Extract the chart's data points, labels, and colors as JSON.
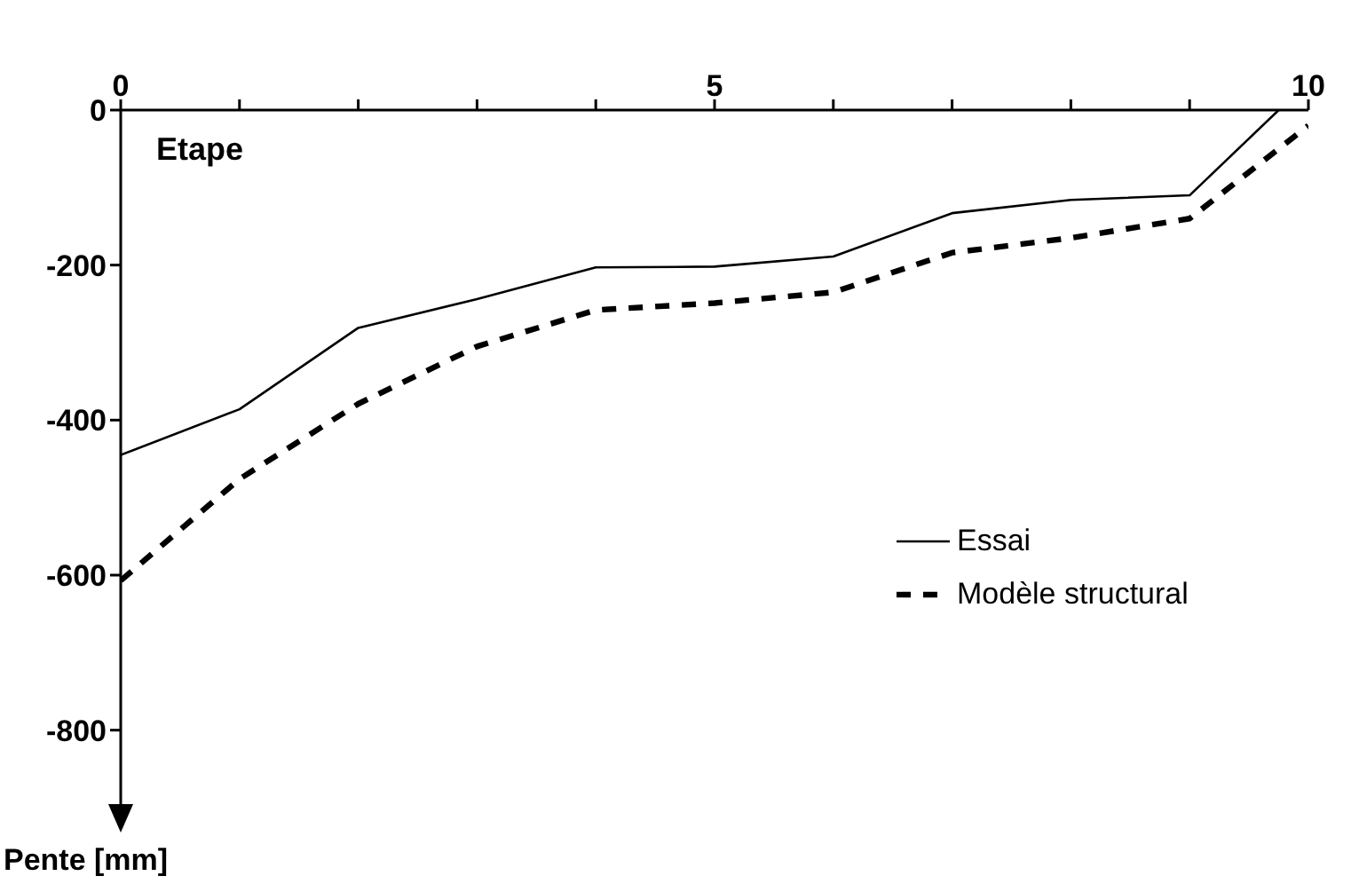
{
  "chart_data": {
    "type": "line",
    "xlabel": "Etape",
    "ylabel": "Pente [mm]",
    "x": [
      0,
      1,
      2,
      3,
      4,
      5,
      6,
      7,
      8,
      9,
      9.75
    ],
    "series": [
      {
        "name": "Essai",
        "color": "#000000",
        "line_style": "solid",
        "values": [
          -445,
          -386,
          -281,
          -244,
          -203,
          -202,
          -189,
          -133,
          -116,
          -110,
          0
        ]
      },
      {
        "name": "Modèle structural",
        "color": "#000000",
        "line_style": "dashed",
        "x": [
          0,
          1,
          2,
          3,
          4,
          5,
          6,
          7,
          8,
          9,
          10
        ],
        "values": [
          -607,
          -476,
          -379,
          -305,
          -258,
          -249,
          -235,
          -184,
          -165,
          -140,
          -20
        ]
      }
    ],
    "xlim": [
      0,
      10
    ],
    "xticks": [
      0,
      {
        "value": 1,
        "label": null
      },
      {
        "value": 2,
        "label": null
      },
      {
        "value": 3,
        "label": null
      },
      {
        "value": 4,
        "label": null
      },
      5,
      {
        "value": 6,
        "label": null
      },
      {
        "value": 7,
        "label": null
      },
      {
        "value": 8,
        "label": null
      },
      {
        "value": 9,
        "label": null
      },
      10
    ],
    "ylim": [
      -900,
      0
    ],
    "yticks": [
      0,
      -200,
      -400,
      -600,
      -800
    ],
    "legend": "bottom right"
  }
}
